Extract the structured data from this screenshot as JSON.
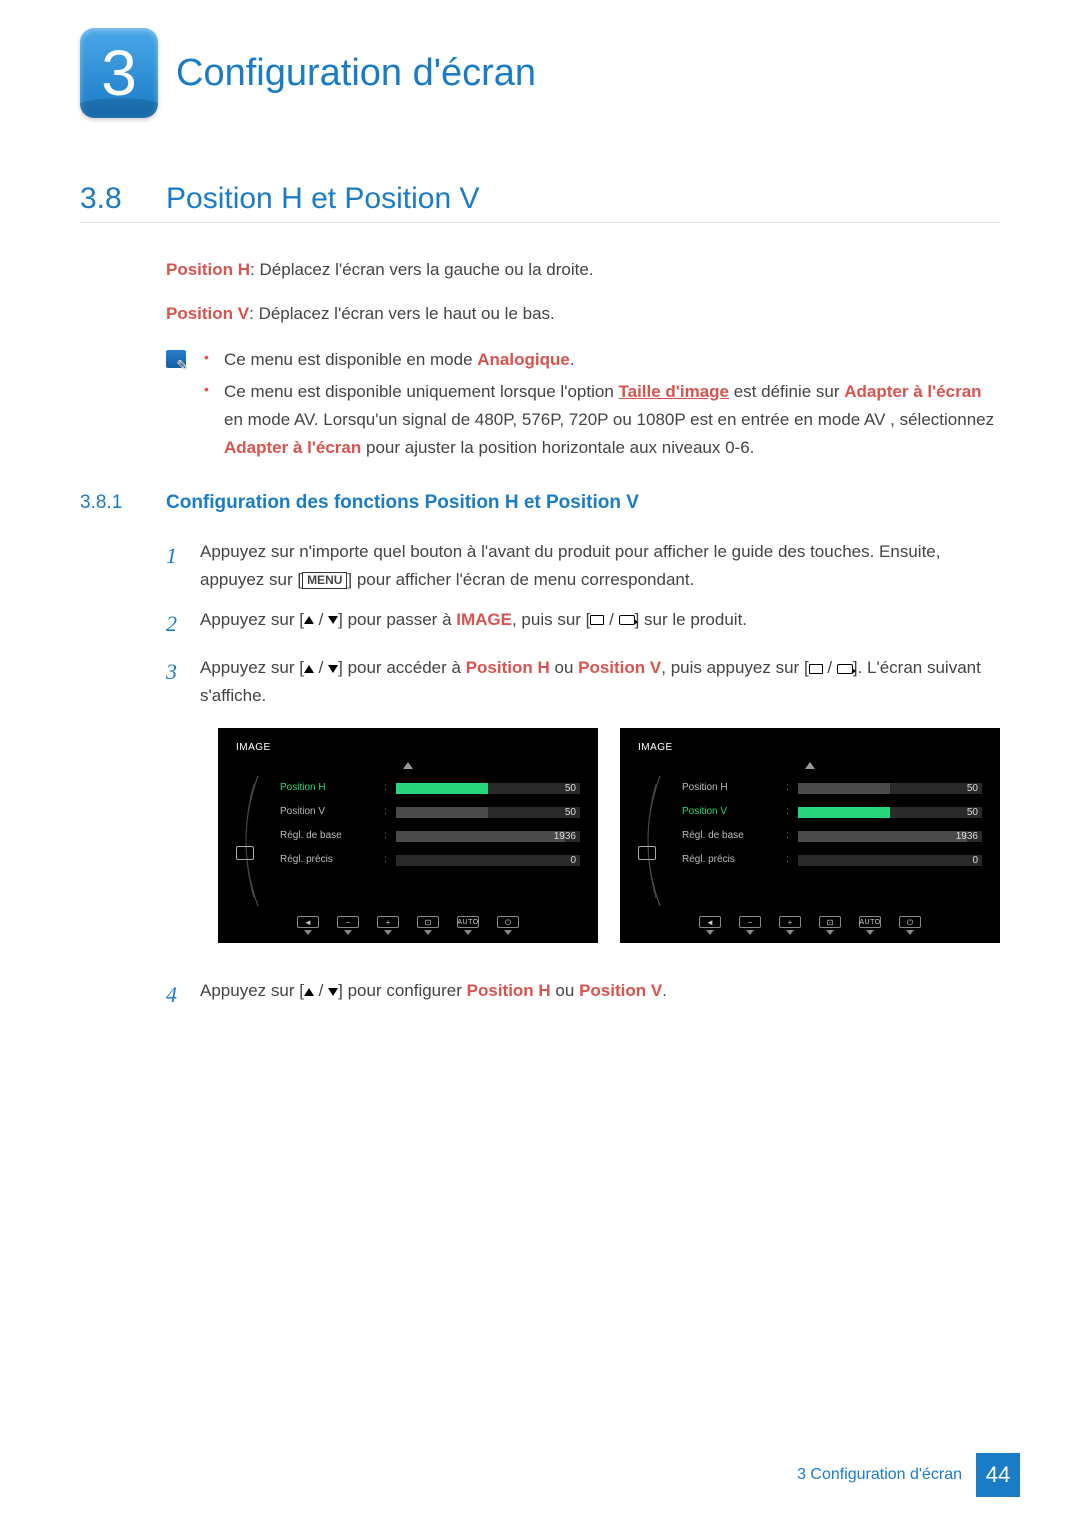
{
  "chapter": {
    "number": "3",
    "title": "Configuration d'écran"
  },
  "section": {
    "number": "3.8",
    "title": "Position H et Position V"
  },
  "intro": {
    "posH_label": "Position H",
    "posH_text": ": Déplacez l'écran vers la gauche ou la droite.",
    "posV_label": "Position V",
    "posV_text": ": Déplacez l'écran vers le haut ou le bas."
  },
  "notes": {
    "n1_a": "Ce menu est disponible en mode ",
    "n1_b": "Analogique",
    "n1_c": ".",
    "n2_a": "Ce menu est disponible uniquement lorsque l'option ",
    "n2_b": "Taille d'image",
    "n2_c": " est définie sur ",
    "n2_d": "Adapter à l'écran",
    "n2_e": " en mode AV. Lorsqu'un signal de 480P, 576P, 720P ou 1080P est en entrée en mode AV , sélectionnez ",
    "n2_f": "Adapter à l'écran",
    "n2_g": " pour ajuster la position horizontale aux niveaux 0-6."
  },
  "subsection": {
    "number": "3.8.1",
    "title": "Configuration des fonctions Position H et Position V"
  },
  "steps": {
    "s1_num": "1",
    "s1_a": "Appuyez sur n'importe quel bouton à l'avant du produit pour afficher le guide des touches. Ensuite, appuyez sur [",
    "s1_menu": "MENU",
    "s1_b": "] pour afficher l'écran de menu correspondant.",
    "s2_num": "2",
    "s2_a": "Appuyez sur [",
    "s2_b": "] pour passer à ",
    "s2_c": "IMAGE",
    "s2_d": ", puis sur [",
    "s2_e": "] sur le produit.",
    "s3_num": "3",
    "s3_a": "Appuyez sur [",
    "s3_b": "] pour accéder à ",
    "s3_c": "Position H",
    "s3_d": " ou ",
    "s3_e": "Position V",
    "s3_f": ", puis appuyez sur [",
    "s3_g": "]. L'écran suivant s'affiche.",
    "s4_num": "4",
    "s4_a": "Appuyez sur [",
    "s4_b": "] pour configurer ",
    "s4_c": "Position H",
    "s4_d": " ou ",
    "s4_e": "Position V",
    "s4_f": "."
  },
  "osd": {
    "title": "IMAGE",
    "items": [
      {
        "label": "Position H",
        "value": "50",
        "fill_pct": 50
      },
      {
        "label": "Position V",
        "value": "50",
        "fill_pct": 50
      },
      {
        "label": "Régl. de base",
        "value": "1936",
        "fill_pct": 92
      },
      {
        "label": "Régl. précis",
        "value": "0",
        "fill_pct": 0
      }
    ],
    "auto_label": "AUTO",
    "panel_bg": "#000000",
    "sel_color": "#27d67c",
    "bar_bg": "#2a2a2a",
    "bar_fill": "#4a4a4a",
    "left_selected_index": 0,
    "right_selected_index": 1
  },
  "footer": {
    "text": "3 Configuration d'écran",
    "page": "44"
  },
  "colors": {
    "blue": "#1a7bc7",
    "orange": "#d9534f"
  }
}
